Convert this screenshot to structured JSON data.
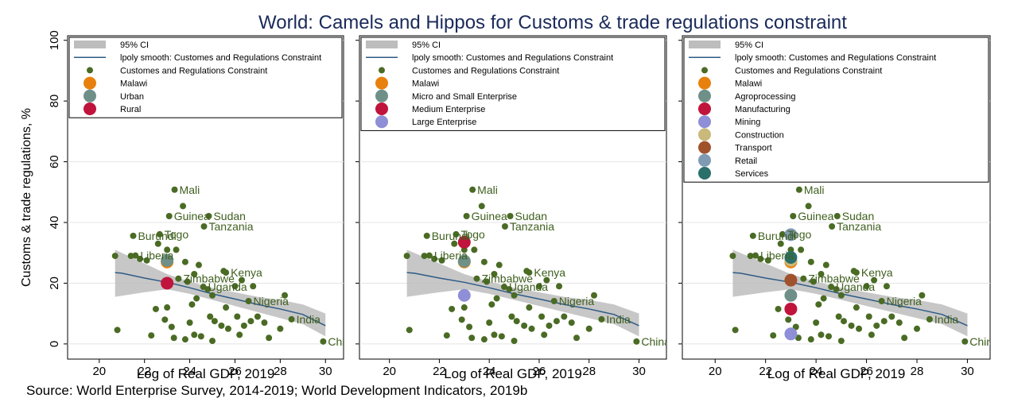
{
  "title": "World: Camels and Hippos for Customs & trade regulations constraint",
  "source": "Source: World Enterprise Survey, 2014-2019; World Development Indicators, 2019b",
  "chart_data": [
    {
      "type": "scatter",
      "xlabel": "Log of Real GDP, 2019",
      "ylabel": "Customs & trade regulations, %",
      "xlim": [
        18.6,
        30.8
      ],
      "ylim": [
        -5,
        101.5
      ],
      "xticks": [
        20,
        22,
        24,
        26,
        28,
        30
      ],
      "yticks": [
        0,
        20,
        40,
        60,
        80,
        100
      ],
      "ytick_labels": true,
      "grid": true,
      "legend": "top-left",
      "series": [
        {
          "name": "95% CI",
          "style": "band",
          "color": "#bdbdbd",
          "x": [
            20.7,
            22,
            23,
            24,
            25,
            26,
            27,
            28,
            29,
            30
          ],
          "lower": [
            15.5,
            17,
            18,
            16.5,
            14.5,
            12.5,
            10.5,
            8.5,
            6.5,
            2.5
          ],
          "upper": [
            31,
            26.5,
            23,
            20.5,
            18.5,
            17,
            15.5,
            14.5,
            13,
            10
          ]
        },
        {
          "name": "lpoly smooth: Customes and Regulations Constraint",
          "style": "line",
          "color": "#2e5b86",
          "x": [
            20.7,
            21,
            22,
            23,
            24,
            25,
            26,
            27,
            28,
            29,
            30
          ],
          "values": [
            23.5,
            23.3,
            21.7,
            20.3,
            18.5,
            16.5,
            14.8,
            13,
            11.5,
            9.7,
            6
          ]
        },
        {
          "name": "Customes and Regulations Constraint",
          "style": "points",
          "color": "#4a6b24",
          "x": [
            23.33,
            23.09,
            24.84,
            24.63,
            21.5,
            22.67,
            21.6,
            23.5,
            24.6,
            25.6,
            26.6,
            28.5,
            29.9,
            20.8,
            20.7,
            21.4,
            21.8,
            22.1,
            22.5,
            22.3,
            22.9,
            23.2,
            23.0,
            23.3,
            23.7,
            23.9,
            24.2,
            24.4,
            24.8,
            25.0,
            25.5,
            26.0,
            26.3,
            26.8,
            24.1,
            24.3,
            24.9,
            25.1,
            25.4,
            25.7,
            26.2,
            26.4,
            26.7,
            27.0,
            27.3,
            27.5,
            28.0,
            28.2,
            24.0,
            24.2,
            23.8,
            24.5,
            25.0,
            23.4,
            23.0,
            22.6,
            23.8,
            26.1,
            25.6
          ],
          "values": [
            50.8,
            42.1,
            42.1,
            38.7,
            35.6,
            36.1,
            29.1,
            21.5,
            18.8,
            23.5,
            14.1,
            8.1,
            0.8,
            4.6,
            29,
            29,
            28,
            27.5,
            11.5,
            2.8,
            8,
            5.6,
            12,
            2,
            45.4,
            20.5,
            23,
            26,
            18,
            16,
            24,
            19,
            21,
            19,
            13,
            15,
            9,
            7.5,
            6,
            5,
            3,
            6,
            7.5,
            9,
            7,
            2,
            5,
            16,
            7,
            3,
            1.5,
            2.5,
            1,
            31,
            31,
            33,
            27,
            9,
            12
          ],
          "labels": [
            "Mali",
            "Guinea",
            "Sudan",
            "Tanzania",
            "Burundi",
            "Togo",
            "Liberia",
            "Zimbabwe",
            "Uganda",
            "Kenya",
            "Nigeria",
            "India",
            "China",
            null,
            null,
            null,
            null,
            null,
            null,
            null,
            null,
            null,
            null,
            null,
            null,
            null,
            null,
            null,
            null,
            null,
            null,
            null,
            null,
            null,
            null,
            null,
            null,
            null,
            null,
            null,
            null,
            null,
            null,
            null,
            null,
            null,
            null,
            null,
            null,
            null,
            null,
            null,
            null,
            null,
            null,
            null,
            null,
            null,
            null
          ]
        },
        {
          "name": "Malawi",
          "style": "points",
          "color": "#e8800e",
          "x": [
            23.0
          ],
          "values": [
            27
          ]
        },
        {
          "name": "Urban",
          "style": "points",
          "color": "#6f9089",
          "x": [
            23.0
          ],
          "values": [
            27.5
          ]
        },
        {
          "name": "Rural",
          "style": "points",
          "color": "#c0143c",
          "x": [
            23.0
          ],
          "values": [
            20
          ]
        }
      ]
    },
    {
      "type": "scatter",
      "xlabel": "Log of Real GDP, 2019",
      "xlim": [
        18.8,
        31.1
      ],
      "ylim": [
        -5,
        101.5
      ],
      "xticks": [
        20,
        22,
        24,
        26,
        28,
        30
      ],
      "yticks": [
        0,
        20,
        40,
        60,
        80,
        100
      ],
      "ytick_labels": false,
      "grid": true,
      "legend": "top-left",
      "series": [
        {
          "name": "95% CI",
          "style": "band",
          "color": "#bdbdbd",
          "x": [
            20.7,
            22,
            23,
            24,
            25,
            26,
            27,
            28,
            29,
            30
          ],
          "lower": [
            15.5,
            17,
            18,
            16.5,
            14.5,
            12.5,
            10.5,
            8.5,
            6.5,
            2.5
          ],
          "upper": [
            31,
            26.5,
            23,
            20.5,
            18.5,
            17,
            15.5,
            14.5,
            13,
            10
          ]
        },
        {
          "name": "lpoly smooth: Customes and Regulations Constraint",
          "style": "line",
          "color": "#2e5b86",
          "x": [
            20.7,
            21,
            22,
            23,
            24,
            25,
            26,
            27,
            28,
            29,
            30
          ],
          "values": [
            23.5,
            23.3,
            21.7,
            20.3,
            18.5,
            16.5,
            14.8,
            13,
            11.5,
            9.7,
            6
          ]
        },
        {
          "name": "Customes and Regulations Constraint",
          "style": "points",
          "color": "#4a6b24",
          "x": [
            23.33,
            23.09,
            24.84,
            24.63,
            21.5,
            22.67,
            21.6,
            23.5,
            24.6,
            25.6,
            26.6,
            28.5,
            29.9,
            20.8,
            20.7,
            21.4,
            21.8,
            22.1,
            22.5,
            22.3,
            22.9,
            23.2,
            23.0,
            23.3,
            23.7,
            23.9,
            24.2,
            24.4,
            24.8,
            25.0,
            25.5,
            26.0,
            26.3,
            26.8,
            24.1,
            24.3,
            24.9,
            25.1,
            25.4,
            25.7,
            26.2,
            26.4,
            26.7,
            27.0,
            27.3,
            27.5,
            28.0,
            28.2,
            24.0,
            24.2,
            23.8,
            24.5,
            25.0,
            23.4,
            23.0,
            22.6,
            23.8,
            26.1,
            25.6
          ],
          "values": [
            50.8,
            42.1,
            42.1,
            38.7,
            35.6,
            36.1,
            29.1,
            21.5,
            18.8,
            23.5,
            14.1,
            8.1,
            0.8,
            4.6,
            29,
            29,
            28,
            27.5,
            11.5,
            2.8,
            8,
            5.6,
            12,
            2,
            45.4,
            20.5,
            23,
            26,
            18,
            16,
            24,
            19,
            21,
            19,
            13,
            15,
            9,
            7.5,
            6,
            5,
            3,
            6,
            7.5,
            9,
            7,
            2,
            5,
            16,
            7,
            3,
            1.5,
            2.5,
            1,
            31,
            31,
            33,
            27,
            9,
            12
          ],
          "labels": [
            "Mali",
            "Guinea",
            "Sudan",
            "Tanzania",
            "Burundi",
            "Togo",
            "Liberia",
            "Zimbabwe",
            "Uganda",
            "Kenya",
            "Nigeria",
            "India",
            "China",
            null,
            null,
            null,
            null,
            null,
            null,
            null,
            null,
            null,
            null,
            null,
            null,
            null,
            null,
            null,
            null,
            null,
            null,
            null,
            null,
            null,
            null,
            null,
            null,
            null,
            null,
            null,
            null,
            null,
            null,
            null,
            null,
            null,
            null,
            null,
            null,
            null,
            null,
            null,
            null,
            null,
            null,
            null,
            null,
            null,
            null
          ]
        },
        {
          "name": "Malawi",
          "style": "points",
          "color": "#e8800e",
          "x": [
            23.0
          ],
          "values": [
            27
          ]
        },
        {
          "name": "Micro and Small Enterprise",
          "style": "points",
          "color": "#6f9089",
          "x": [
            23.0
          ],
          "values": [
            27.3
          ]
        },
        {
          "name": "Medium Enterprise",
          "style": "points",
          "color": "#c0143c",
          "x": [
            23.0
          ],
          "values": [
            33.5
          ]
        },
        {
          "name": "Large Enterprise",
          "style": "points",
          "color": "#8e8fd6",
          "x": [
            23.0
          ],
          "values": [
            16
          ]
        }
      ]
    },
    {
      "type": "scatter",
      "xlabel": "Log of Real GDP, 2019",
      "xlim": [
        18.7,
        30.9
      ],
      "ylim": [
        -5,
        101.5
      ],
      "xticks": [
        20,
        22,
        24,
        26,
        28,
        30
      ],
      "yticks": [
        0,
        20,
        40,
        60,
        80,
        100
      ],
      "ytick_labels": false,
      "grid": true,
      "legend": "top-left",
      "series": [
        {
          "name": "95% CI",
          "style": "band",
          "color": "#bdbdbd",
          "x": [
            20.7,
            22,
            23,
            24,
            25,
            26,
            27,
            28,
            29,
            30
          ],
          "lower": [
            15.5,
            17,
            18,
            16.5,
            14.5,
            12.5,
            10.5,
            8.5,
            6.5,
            2.5
          ],
          "upper": [
            31,
            26.5,
            23,
            20.5,
            18.5,
            17,
            15.5,
            14.5,
            13,
            10
          ]
        },
        {
          "name": "lpoly smooth: Customes and Regulations Constraint",
          "style": "line",
          "color": "#2e5b86",
          "x": [
            20.7,
            21,
            22,
            23,
            24,
            25,
            26,
            27,
            28,
            29,
            30
          ],
          "values": [
            23.5,
            23.3,
            21.7,
            20.3,
            18.5,
            16.5,
            14.8,
            13,
            11.5,
            9.7,
            6
          ]
        },
        {
          "name": "Customes and Regulations Constraint",
          "style": "points",
          "color": "#4a6b24",
          "x": [
            23.33,
            23.09,
            24.84,
            24.63,
            21.5,
            22.67,
            21.6,
            23.5,
            24.6,
            25.6,
            26.6,
            28.5,
            29.9,
            20.8,
            20.7,
            21.4,
            21.8,
            22.1,
            22.5,
            22.3,
            22.9,
            23.2,
            23.0,
            23.3,
            23.7,
            23.9,
            24.2,
            24.4,
            24.8,
            25.0,
            25.5,
            26.0,
            26.3,
            26.8,
            24.1,
            24.3,
            24.9,
            25.1,
            25.4,
            25.7,
            26.2,
            26.4,
            26.7,
            27.0,
            27.3,
            27.5,
            28.0,
            28.2,
            24.0,
            24.2,
            23.8,
            24.5,
            25.0,
            23.4,
            23.0,
            22.6,
            23.8,
            26.1,
            25.6
          ],
          "values": [
            50.8,
            42.1,
            42.1,
            38.7,
            35.6,
            36.1,
            29.1,
            21.5,
            18.8,
            23.5,
            14.1,
            8.1,
            0.8,
            4.6,
            29,
            29,
            28,
            27.5,
            11.5,
            2.8,
            8,
            5.6,
            12,
            2,
            45.4,
            20.5,
            23,
            26,
            18,
            16,
            24,
            19,
            21,
            19,
            13,
            15,
            9,
            7.5,
            6,
            5,
            3,
            6,
            7.5,
            9,
            7,
            2,
            5,
            16,
            7,
            3,
            1.5,
            2.5,
            1,
            31,
            31,
            33,
            27,
            9,
            12
          ],
          "labels": [
            "Mali",
            "Guinea",
            "Sudan",
            "Tanzania",
            "Burundi",
            "Togo",
            "Liberia",
            "Zimbabwe",
            "Uganda",
            "Kenya",
            "Nigeria",
            "India",
            "China",
            null,
            null,
            null,
            null,
            null,
            null,
            null,
            null,
            null,
            null,
            null,
            null,
            null,
            null,
            null,
            null,
            null,
            null,
            null,
            null,
            null,
            null,
            null,
            null,
            null,
            null,
            null,
            null,
            null,
            null,
            null,
            null,
            null,
            null,
            null,
            null,
            null,
            null,
            null,
            null,
            null,
            null,
            null,
            null,
            null,
            null
          ]
        },
        {
          "name": "Malawi",
          "style": "points",
          "color": "#e8800e",
          "x": [
            23.0
          ],
          "values": [
            27
          ]
        },
        {
          "name": "Agroprocessing",
          "style": "points",
          "color": "#6f9089",
          "x": [
            23.0
          ],
          "values": [
            16
          ]
        },
        {
          "name": "Manufacturing",
          "style": "points",
          "color": "#c0143c",
          "x": [
            23.0
          ],
          "values": [
            11.5
          ]
        },
        {
          "name": "Mining",
          "style": "points",
          "color": "#8e8fd6",
          "x": [
            23.0
          ],
          "values": [
            3.3
          ]
        },
        {
          "name": "Construction",
          "style": "points",
          "color": "#c9b97a",
          "x": [
            23.0
          ],
          "values": [
            27.6
          ]
        },
        {
          "name": "Transport",
          "style": "points",
          "color": "#a0522d",
          "x": [
            23.0
          ],
          "values": [
            21
          ]
        },
        {
          "name": "Retail",
          "style": "points",
          "color": "#7f9ab3",
          "x": [
            23.0
          ],
          "values": [
            36
          ]
        },
        {
          "name": "Services",
          "style": "points",
          "color": "#2a6f6a",
          "x": [
            23.0
          ],
          "values": [
            28.5
          ]
        }
      ]
    }
  ]
}
